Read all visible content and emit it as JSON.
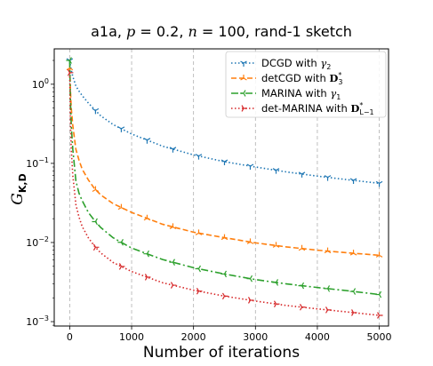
{
  "chart_data": {
    "type": "line",
    "title": "a1a, p = 0.2, n = 100, rand-1 sketch",
    "title_parts": {
      "dataset": "a1a, ",
      "p_sym": "p",
      "p_val": " = 0.2, ",
      "n_sym": "n",
      "n_val": " = 100, rand-1 sketch"
    },
    "xlabel": "Number of iterations",
    "ylabel": "G",
    "ylabel_sub": "K,D",
    "x_scale": "linear",
    "y_scale": "log",
    "xlim": [
      -250,
      5150
    ],
    "ylim": [
      0.00088,
      2.8
    ],
    "x_ticks": [
      0,
      1000,
      2000,
      3000,
      4000,
      5000
    ],
    "x_tick_labels": [
      "0",
      "1000",
      "2000",
      "3000",
      "4000",
      "5000"
    ],
    "y_ticks": [
      0.001,
      0.01,
      0.1,
      1
    ],
    "y_tick_labels": [
      {
        "base": "10",
        "exp": "−3"
      },
      {
        "base": "10",
        "exp": "−2"
      },
      {
        "base": "10",
        "exp": "−1"
      },
      {
        "base": "10",
        "exp": "0"
      }
    ],
    "grid": "vertical dashed at x ticks",
    "legend_position": "top-right",
    "x": [
      0,
      10,
      25,
      50,
      100,
      150,
      200,
      300,
      400,
      500,
      700,
      1000,
      1500,
      2000,
      2500,
      3000,
      3500,
      4000,
      4500,
      5000
    ],
    "series": [
      {
        "name": "DCGD with γ2",
        "legend": {
          "text": "DCGD with ",
          "math": "γ",
          "sub": "2"
        },
        "color": "#1f77b4",
        "dash": "1.5,2.5",
        "marker": "tri_down",
        "values": [
          2.0,
          1.75,
          1.5,
          1.25,
          0.95,
          0.82,
          0.72,
          0.58,
          0.48,
          0.4,
          0.31,
          0.235,
          0.165,
          0.128,
          0.105,
          0.09,
          0.078,
          0.069,
          0.062,
          0.056
        ]
      },
      {
        "name": "detCGD with D3*",
        "legend": {
          "text": "detCGD with ",
          "math": "D",
          "sub": "3",
          "sup": "*"
        },
        "color": "#ff7f0e",
        "dash": "6,3",
        "marker": "tri_up",
        "values": [
          1.6,
          0.9,
          0.5,
          0.3,
          0.15,
          0.11,
          0.085,
          0.062,
          0.048,
          0.04,
          0.031,
          0.024,
          0.017,
          0.0135,
          0.0115,
          0.0099,
          0.0088,
          0.008,
          0.0074,
          0.0069
        ]
      },
      {
        "name": "MARINA with γ1",
        "legend": {
          "text": "MARINA with ",
          "math": "γ",
          "sub": "1"
        },
        "color": "#2ca02c",
        "dash": "8,3,2,3",
        "marker": "tri_left",
        "values": [
          2.0,
          0.7,
          0.3,
          0.15,
          0.06,
          0.042,
          0.034,
          0.024,
          0.019,
          0.0155,
          0.0115,
          0.0085,
          0.0061,
          0.0048,
          0.004,
          0.0034,
          0.003,
          0.0027,
          0.00245,
          0.0022
        ]
      },
      {
        "name": "det-MARINA with DL−1*",
        "legend": {
          "text": "det-MARINA with ",
          "math": "D",
          "sub": "L−1",
          "sup": "*"
        },
        "color": "#d62728",
        "dash": "1.5,2.5",
        "marker": "tri_right",
        "values": [
          1.4,
          0.4,
          0.15,
          0.07,
          0.03,
          0.021,
          0.016,
          0.0115,
          0.009,
          0.0074,
          0.0056,
          0.0043,
          0.0031,
          0.0025,
          0.0021,
          0.00182,
          0.0016,
          0.00145,
          0.00132,
          0.0012
        ]
      }
    ]
  }
}
